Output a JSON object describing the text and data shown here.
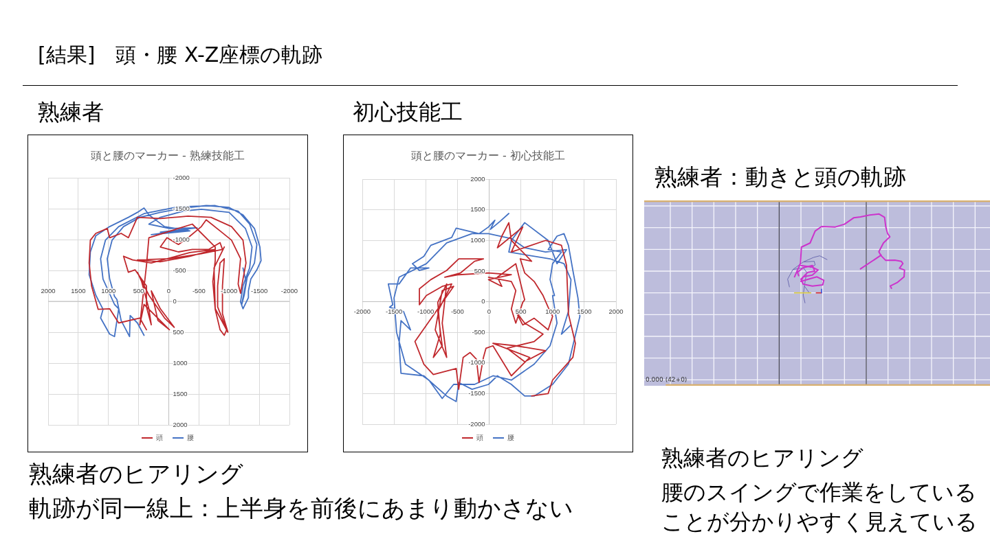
{
  "chart_data": [
    {
      "type": "line",
      "title": "頭と腰のマーカー - 熟練技能工",
      "series": [
        {
          "name": "頭",
          "color": "#c0282d",
          "x": [
            370,
            480,
            830,
            980,
            1170,
            1280,
            1320,
            1300,
            1210,
            1020,
            980,
            790,
            670,
            520,
            140,
            -320,
            -700,
            -1040,
            -1230,
            -1280,
            -1230,
            -1190,
            -1150,
            -1190,
            -1040,
            -850,
            -620,
            -540,
            -320,
            -160,
            30,
            140,
            -160,
            -390,
            -660,
            -850,
            -890,
            -540,
            -10,
            520,
            140,
            -350,
            -770,
            -350,
            290,
            600,
            750,
            670,
            560,
            370,
            370,
            290,
            330,
            450,
            520,
            330,
            70,
            -90,
            140,
            290,
            180,
            -10,
            410,
            480,
            370,
            330,
            -390,
            -770,
            -770,
            -730,
            -770,
            -850,
            -920,
            -960,
            -810,
            -810,
            -850,
            -920,
            -890,
            -890,
            -980,
            -770,
            -750,
            -920
          ],
          "values": [
            460,
            270,
            350,
            120,
            130,
            -250,
            -620,
            -990,
            -1100,
            -1180,
            -1030,
            -1100,
            -1030,
            -1360,
            -1340,
            -1380,
            -1360,
            -1210,
            -990,
            -620,
            -360,
            -130,
            -280,
            -690,
            -990,
            -1140,
            -1320,
            -1210,
            -1030,
            -920,
            -1030,
            -880,
            -800,
            -840,
            -840,
            -950,
            -840,
            -770,
            -690,
            -670,
            -640,
            -730,
            -840,
            -790,
            -620,
            -670,
            -730,
            -470,
            -510,
            -250,
            90,
            380,
            120,
            -320,
            -470,
            -100,
            270,
            420,
            120,
            -170,
            310,
            460,
            50,
            380,
            -580,
            -1030,
            -1250,
            -880,
            -660,
            -320,
            130,
            460,
            550,
            460,
            90,
            -250,
            -620,
            -690,
            -250,
            200,
            500,
            120,
            -540,
            -880
          ]
        },
        {
          "name": "腰",
          "color": "#4472c4",
          "x": [
            410,
            520,
            640,
            650,
            790,
            860,
            900,
            980,
            1020,
            940,
            750,
            480,
            140,
            -240,
            -620,
            -1000,
            -1230,
            -1420,
            -1510,
            -1530,
            -1460,
            -1360,
            -1320,
            -1320,
            -1230,
            -1190,
            -1230,
            -1270,
            -1340,
            -1380,
            -1270,
            -1000,
            -540,
            -240,
            140,
            330,
            -10,
            -470,
            140,
            -320,
            290,
            -350,
            70,
            330,
            410,
            520,
            670,
            980,
            1210,
            1300,
            1320,
            1210,
            1090,
            1130,
            980,
            900,
            830,
            900,
            1090,
            1130,
            1050,
            830,
            410,
            -160,
            -770,
            -1150,
            -1340,
            -1460,
            -1420,
            -1300,
            -1250,
            -1210,
            -1280,
            -1230
          ],
          "values": [
            550,
            350,
            230,
            570,
            310,
            -30,
            -80,
            -360,
            -690,
            -990,
            -1210,
            -1360,
            -1440,
            -1510,
            -1550,
            -1520,
            -1400,
            -1180,
            -880,
            -660,
            -510,
            -360,
            -170,
            -60,
            120,
            10,
            -250,
            -360,
            -540,
            -880,
            -1180,
            -1440,
            -1490,
            -1460,
            -1360,
            -1250,
            -1180,
            -1190,
            -1120,
            -1160,
            -1080,
            -1140,
            -1210,
            -1400,
            -1510,
            -1440,
            -1360,
            -1210,
            -1060,
            -800,
            -430,
            -100,
            130,
            270,
            530,
            570,
            120,
            50,
            -360,
            -690,
            -990,
            -1210,
            -1420,
            -1530,
            -1550,
            -1460,
            -1250,
            -920,
            -620,
            -390,
            -100,
            50,
            -320,
            -540
          ]
        }
      ],
      "xlim": [
        2000,
        -2000
      ],
      "xticks": [
        2000,
        1500,
        1000,
        500,
        0,
        -500,
        -1000,
        -1500,
        -2000
      ],
      "ylim": [
        2000,
        -2000
      ],
      "yticks": [
        -2000,
        -1500,
        -1000,
        -500,
        0,
        500,
        1000,
        1500,
        2000
      ],
      "grid": true,
      "legend": "bottom",
      "annotations": [
        "[結果]　頭・腰 X-Z座標の軌跡",
        "熟練者",
        "熟練者のヒアリング",
        "軌跡が同一線上：上半身を前後にあまり動かさない"
      ]
    },
    {
      "type": "line",
      "title": "頭と腰のマーカー - 初心技能工",
      "series": [
        {
          "name": "頭",
          "color": "#c0282d",
          "x": [
            -10,
            350,
            420,
            350,
            420,
            530,
            560,
            420,
            130,
            200,
            -10,
            350,
            -10,
            -480,
            -700,
            -450,
            -230,
            -90,
            -480,
            -670,
            -920,
            -1100,
            -1100,
            -990,
            -740,
            -590,
            -810,
            -740,
            -880,
            -770,
            -810,
            -670,
            -740,
            -670,
            -850,
            -740,
            -560,
            -1170,
            -1030,
            -880,
            -520,
            -480,
            -410,
            -300,
            -200,
            -160,
            -90,
            -50,
            60,
            350,
            640,
            60,
            420,
            890,
            560,
            280,
            710,
            850,
            560,
            420,
            530,
            710,
            930,
            1000,
            930,
            850,
            710,
            560,
            490,
            670,
            350,
            310,
            200,
            130,
            530,
            350,
            890,
            1140,
            1220,
            1250,
            1360,
            1320,
            1000,
            930,
            670
          ],
          "values": [
            400,
            330,
            180,
            -120,
            -350,
            -10,
            30,
            620,
            400,
            250,
            360,
            440,
            470,
            440,
            400,
            470,
            660,
            700,
            700,
            510,
            360,
            210,
            -50,
            100,
            250,
            290,
            -160,
            -720,
            -910,
            -530,
            -10,
            290,
            -350,
            -910,
            -460,
            180,
            250,
            -650,
            -1020,
            -1190,
            -1090,
            -1430,
            -910,
            -830,
            -940,
            -1320,
            -910,
            -760,
            -720,
            -1210,
            -910,
            -680,
            -720,
            -800,
            -980,
            -760,
            -650,
            -530,
            -350,
            -160,
            -380,
            -270,
            -460,
            -240,
            -90,
            100,
            330,
            470,
            700,
            660,
            1000,
            1290,
            1070,
            880,
            1220,
            810,
            1000,
            920,
            590,
            -200,
            -680,
            -910,
            -1280,
            -1500,
            -1540
          ]
        },
        {
          "name": "腰",
          "color": "#4472c4",
          "x": [
            310,
            170,
            20,
            90,
            -10,
            -160,
            -520,
            -590,
            -920,
            -1030,
            -1210,
            -1100,
            -950,
            -1240,
            -1420,
            -1590,
            -1520,
            -1570,
            -1350,
            -1240,
            -1390,
            -1420,
            -1390,
            -1030,
            -670,
            -520,
            -480,
            -270,
            -10,
            130,
            350,
            560,
            710,
            1000,
            1250,
            1430,
            1400,
            1320,
            1250,
            1180,
            1070,
            930,
            1140,
            1000,
            960,
            1030,
            1000,
            1070,
            960,
            710,
            350,
            60,
            -230,
            -560,
            -740,
            -950,
            -1320,
            -1460,
            -1500,
            -1420,
            -990,
            -670,
            -270,
            -10,
            350,
            560,
            890,
            1220,
            1070,
            930,
            560,
            350,
            310,
            960,
            1180,
            1290,
            1250,
            1140,
            1290
          ],
          "values": [
            1440,
            1310,
            1180,
            1330,
            1220,
            1110,
            1200,
            1050,
            920,
            740,
            620,
            510,
            550,
            550,
            290,
            290,
            -50,
            -90,
            -160,
            -460,
            -310,
            -680,
            -1170,
            -1210,
            -1540,
            -1630,
            -1320,
            -1430,
            -1350,
            -1210,
            -1350,
            -1540,
            -1540,
            -1350,
            -1020,
            -240,
            60,
            510,
            920,
            1110,
            1070,
            850,
            810,
            620,
            360,
            100,
            100,
            -350,
            -720,
            -1020,
            -1280,
            -1210,
            -1350,
            -1350,
            -1580,
            -1280,
            -1020,
            -500,
            60,
            400,
            620,
            960,
            1110,
            1110,
            1030,
            880,
            810,
            850,
            620,
            1000,
            1290,
            1000,
            810,
            700,
            620,
            360,
            -160,
            -530,
            -380
          ]
        }
      ],
      "xlim": [
        -2000,
        2000
      ],
      "xticks": [
        -2000,
        -1500,
        -1000,
        -500,
        0,
        500,
        1000,
        1500,
        2000
      ],
      "ylim": [
        -2000,
        2000
      ],
      "yticks": [
        -2000,
        -1500,
        -1000,
        -500,
        0,
        500,
        1000,
        1500,
        2000
      ],
      "grid": true,
      "legend": "bottom",
      "annotations": [
        "初心技能工"
      ]
    },
    {
      "type": "other",
      "title": "熟練者：動きと頭の軌跡",
      "annotations": [
        "0.000 (42+0)",
        "熟練者のヒアリング",
        "腰のスイングで作業をしている",
        "ことが分かりやすく見えている"
      ]
    }
  ]
}
